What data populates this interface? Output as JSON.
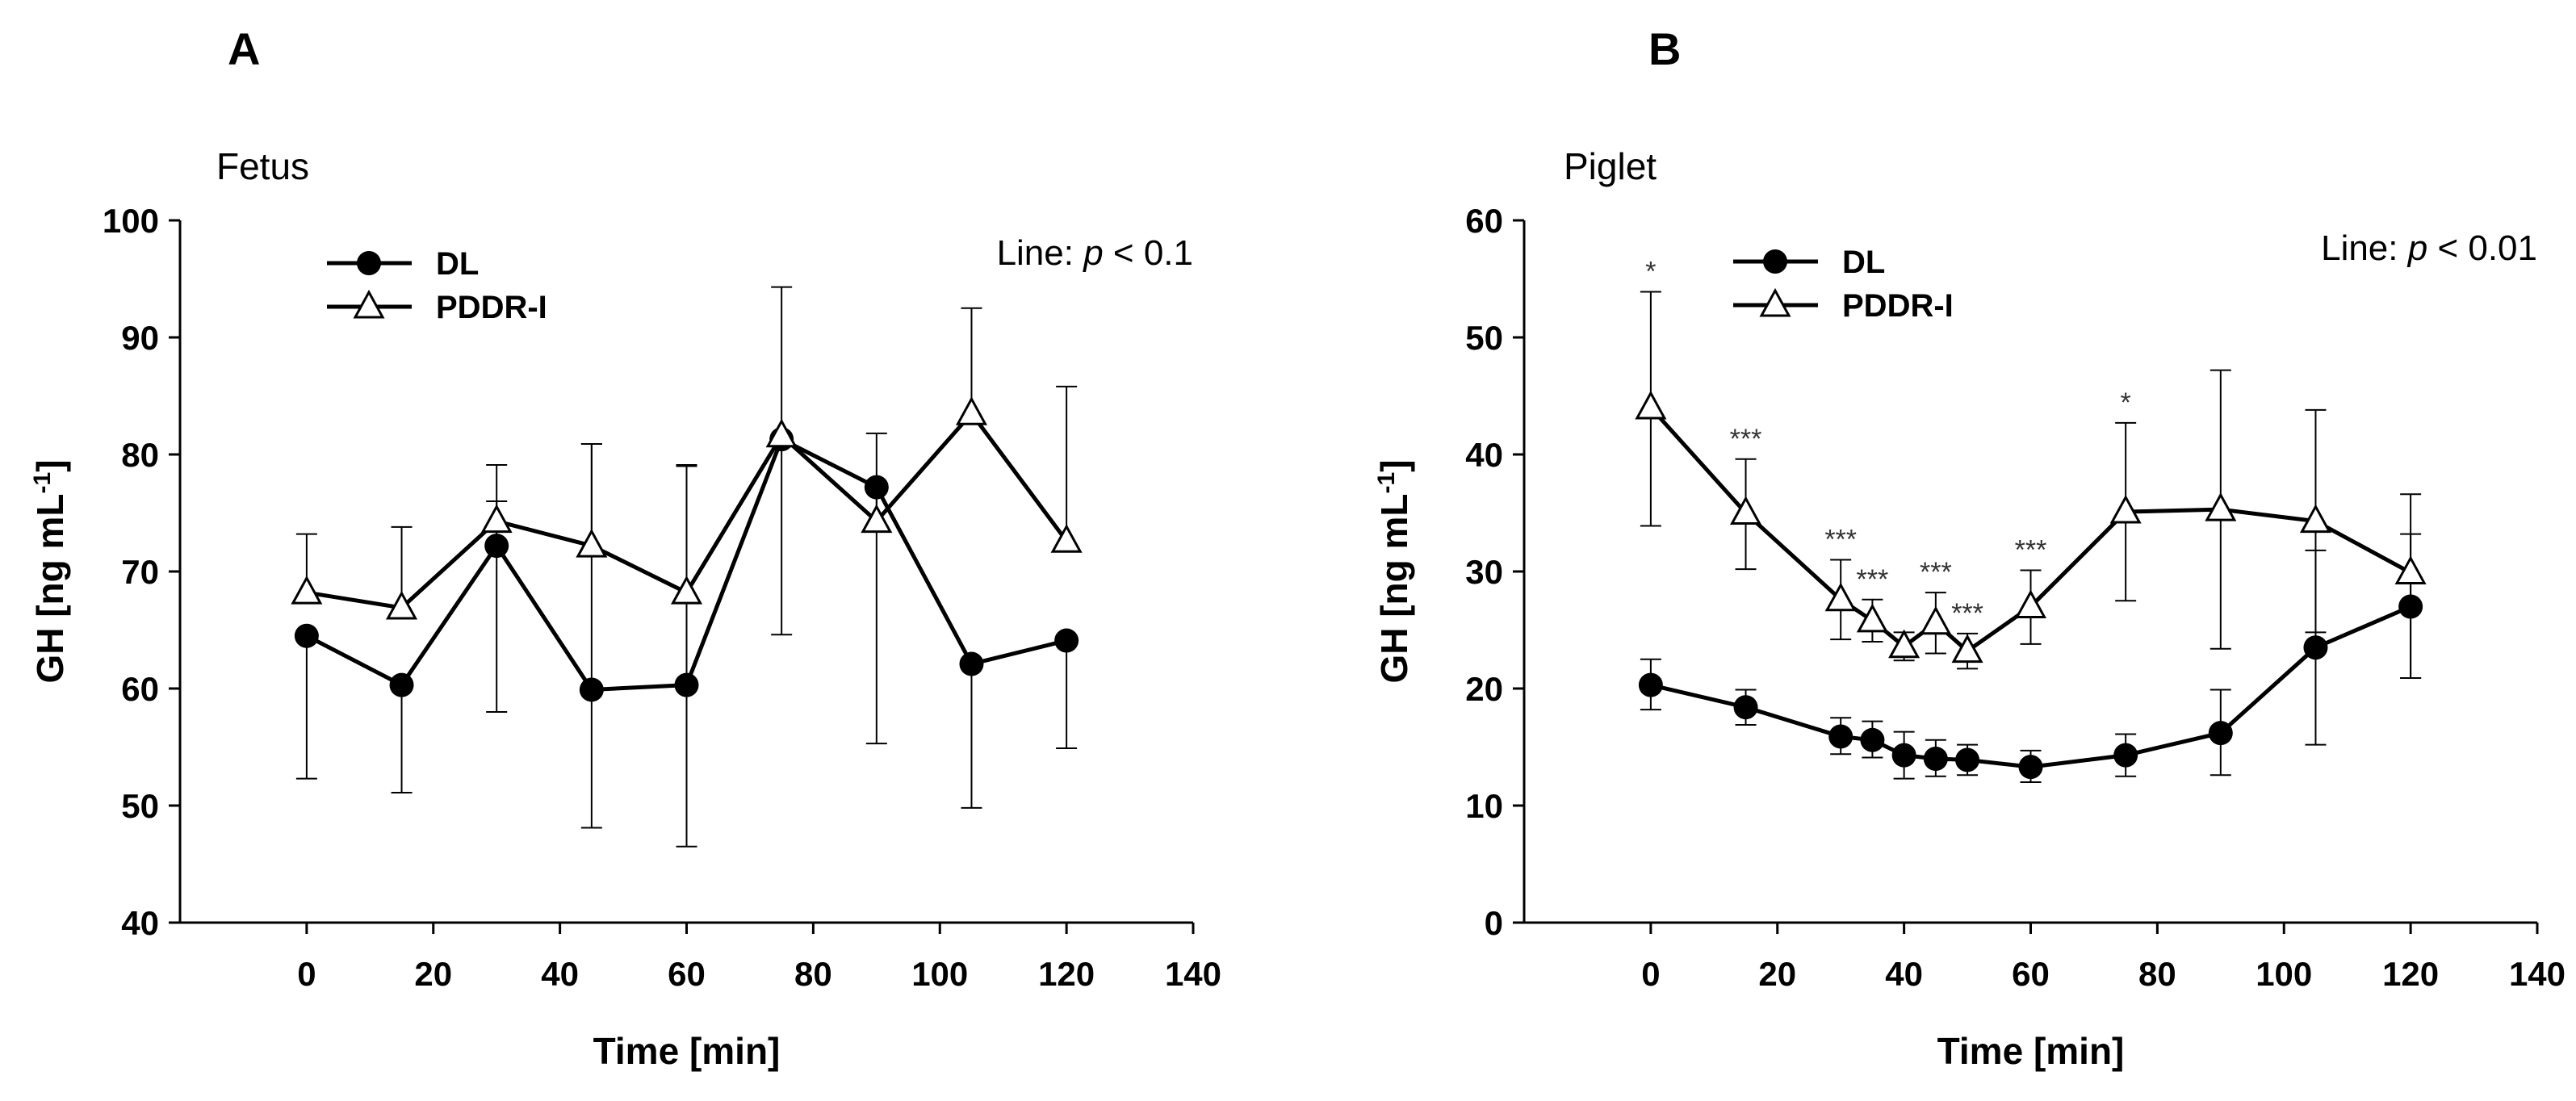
{
  "chart_data": [
    {
      "type": "line",
      "panel": "A",
      "title": "Fetus",
      "xlabel": "Time [min]",
      "ylabel": "GH [ng mL",
      "ylabel_sup": "-1",
      "ylabel_end": "]",
      "xlim": [
        -20,
        140
      ],
      "ylim": [
        40,
        100
      ],
      "xticks": [
        0,
        20,
        40,
        60,
        80,
        100,
        120,
        140
      ],
      "yticks": [
        40,
        50,
        60,
        70,
        80,
        90,
        100
      ],
      "annotation": {
        "prefix": "Line: ",
        "p": "p",
        "suffix": " < 0.1"
      },
      "legend": {
        "position": "top-left"
      },
      "series": [
        {
          "name": "DL",
          "marker": "circle",
          "x": [
            0,
            15,
            30,
            45,
            60,
            75,
            90,
            105,
            120
          ],
          "y": [
            64.5,
            60.3,
            72.2,
            59.9,
            60.3,
            81.3,
            77.2,
            62.1,
            64.1
          ],
          "err_up": [
            null,
            null,
            3.8,
            21.0,
            18.7,
            null,
            null,
            null,
            null
          ],
          "err_down": [
            12.2,
            9.2,
            14.2,
            11.8,
            13.8,
            null,
            21.9,
            12.3,
            9.2
          ]
        },
        {
          "name": "PDDR-I",
          "marker": "triangle",
          "x": [
            0,
            15,
            30,
            45,
            60,
            75,
            90,
            105,
            120
          ],
          "y": [
            68.2,
            66.9,
            74.3,
            72.2,
            68.2,
            81.6,
            74.3,
            83.5,
            72.6
          ],
          "err_up": [
            5.0,
            6.9,
            4.8,
            8.7,
            10.9,
            12.7,
            7.5,
            9.0,
            13.2
          ],
          "err_down": [
            null,
            null,
            null,
            null,
            null,
            17.0,
            null,
            null,
            null
          ]
        }
      ],
      "significance": []
    },
    {
      "type": "line",
      "panel": "B",
      "title": "Piglet",
      "xlabel": "Time [min]",
      "ylabel": "GH [ng mL",
      "ylabel_sup": "-1",
      "ylabel_end": "]",
      "xlim": [
        -20,
        140
      ],
      "ylim": [
        0,
        60
      ],
      "xticks": [
        0,
        20,
        40,
        60,
        80,
        100,
        120,
        140
      ],
      "yticks": [
        0,
        10,
        20,
        30,
        40,
        50,
        60
      ],
      "annotation": {
        "prefix": "Line: ",
        "p": "p",
        "suffix": " < 0.01"
      },
      "legend": {
        "position": "top-left"
      },
      "series": [
        {
          "name": "DL",
          "marker": "circle",
          "x": [
            0,
            15,
            30,
            35,
            40,
            45,
            50,
            60,
            75,
            90,
            105,
            120
          ],
          "y": [
            20.3,
            18.4,
            15.9,
            15.6,
            14.3,
            14.0,
            13.9,
            13.3,
            14.3,
            16.2,
            23.5,
            27.0
          ],
          "err_up": [
            2.2,
            1.5,
            1.6,
            1.6,
            2.0,
            1.6,
            1.3,
            1.4,
            1.8,
            3.7,
            8.3,
            6.2
          ],
          "err_down": [
            2.1,
            1.5,
            1.5,
            1.5,
            2.0,
            1.5,
            1.3,
            1.3,
            1.8,
            3.6,
            8.3,
            6.1
          ]
        },
        {
          "name": "PDDR-I",
          "marker": "triangle",
          "x": [
            0,
            15,
            30,
            35,
            40,
            45,
            50,
            60,
            75,
            90,
            105,
            120
          ],
          "y": [
            44.0,
            35.0,
            27.6,
            25.8,
            23.6,
            25.6,
            23.2,
            27.0,
            35.1,
            35.3,
            34.3,
            29.9
          ],
          "err_up": [
            9.9,
            4.6,
            3.4,
            1.8,
            1.2,
            2.6,
            1.5,
            3.1,
            7.6,
            11.9,
            9.5,
            6.7
          ],
          "err_down": [
            10.1,
            4.8,
            3.4,
            1.8,
            1.2,
            2.6,
            1.5,
            3.2,
            7.6,
            11.9,
            9.5,
            9.0
          ]
        }
      ],
      "significance": [
        {
          "x": 0,
          "label": "*"
        },
        {
          "x": 15,
          "label": "***"
        },
        {
          "x": 30,
          "label": "***"
        },
        {
          "x": 35,
          "label": "***"
        },
        {
          "x": 45,
          "label": "***"
        },
        {
          "x": 50,
          "label": "***"
        },
        {
          "x": 60,
          "label": "***"
        },
        {
          "x": 75,
          "label": "*"
        }
      ]
    }
  ]
}
